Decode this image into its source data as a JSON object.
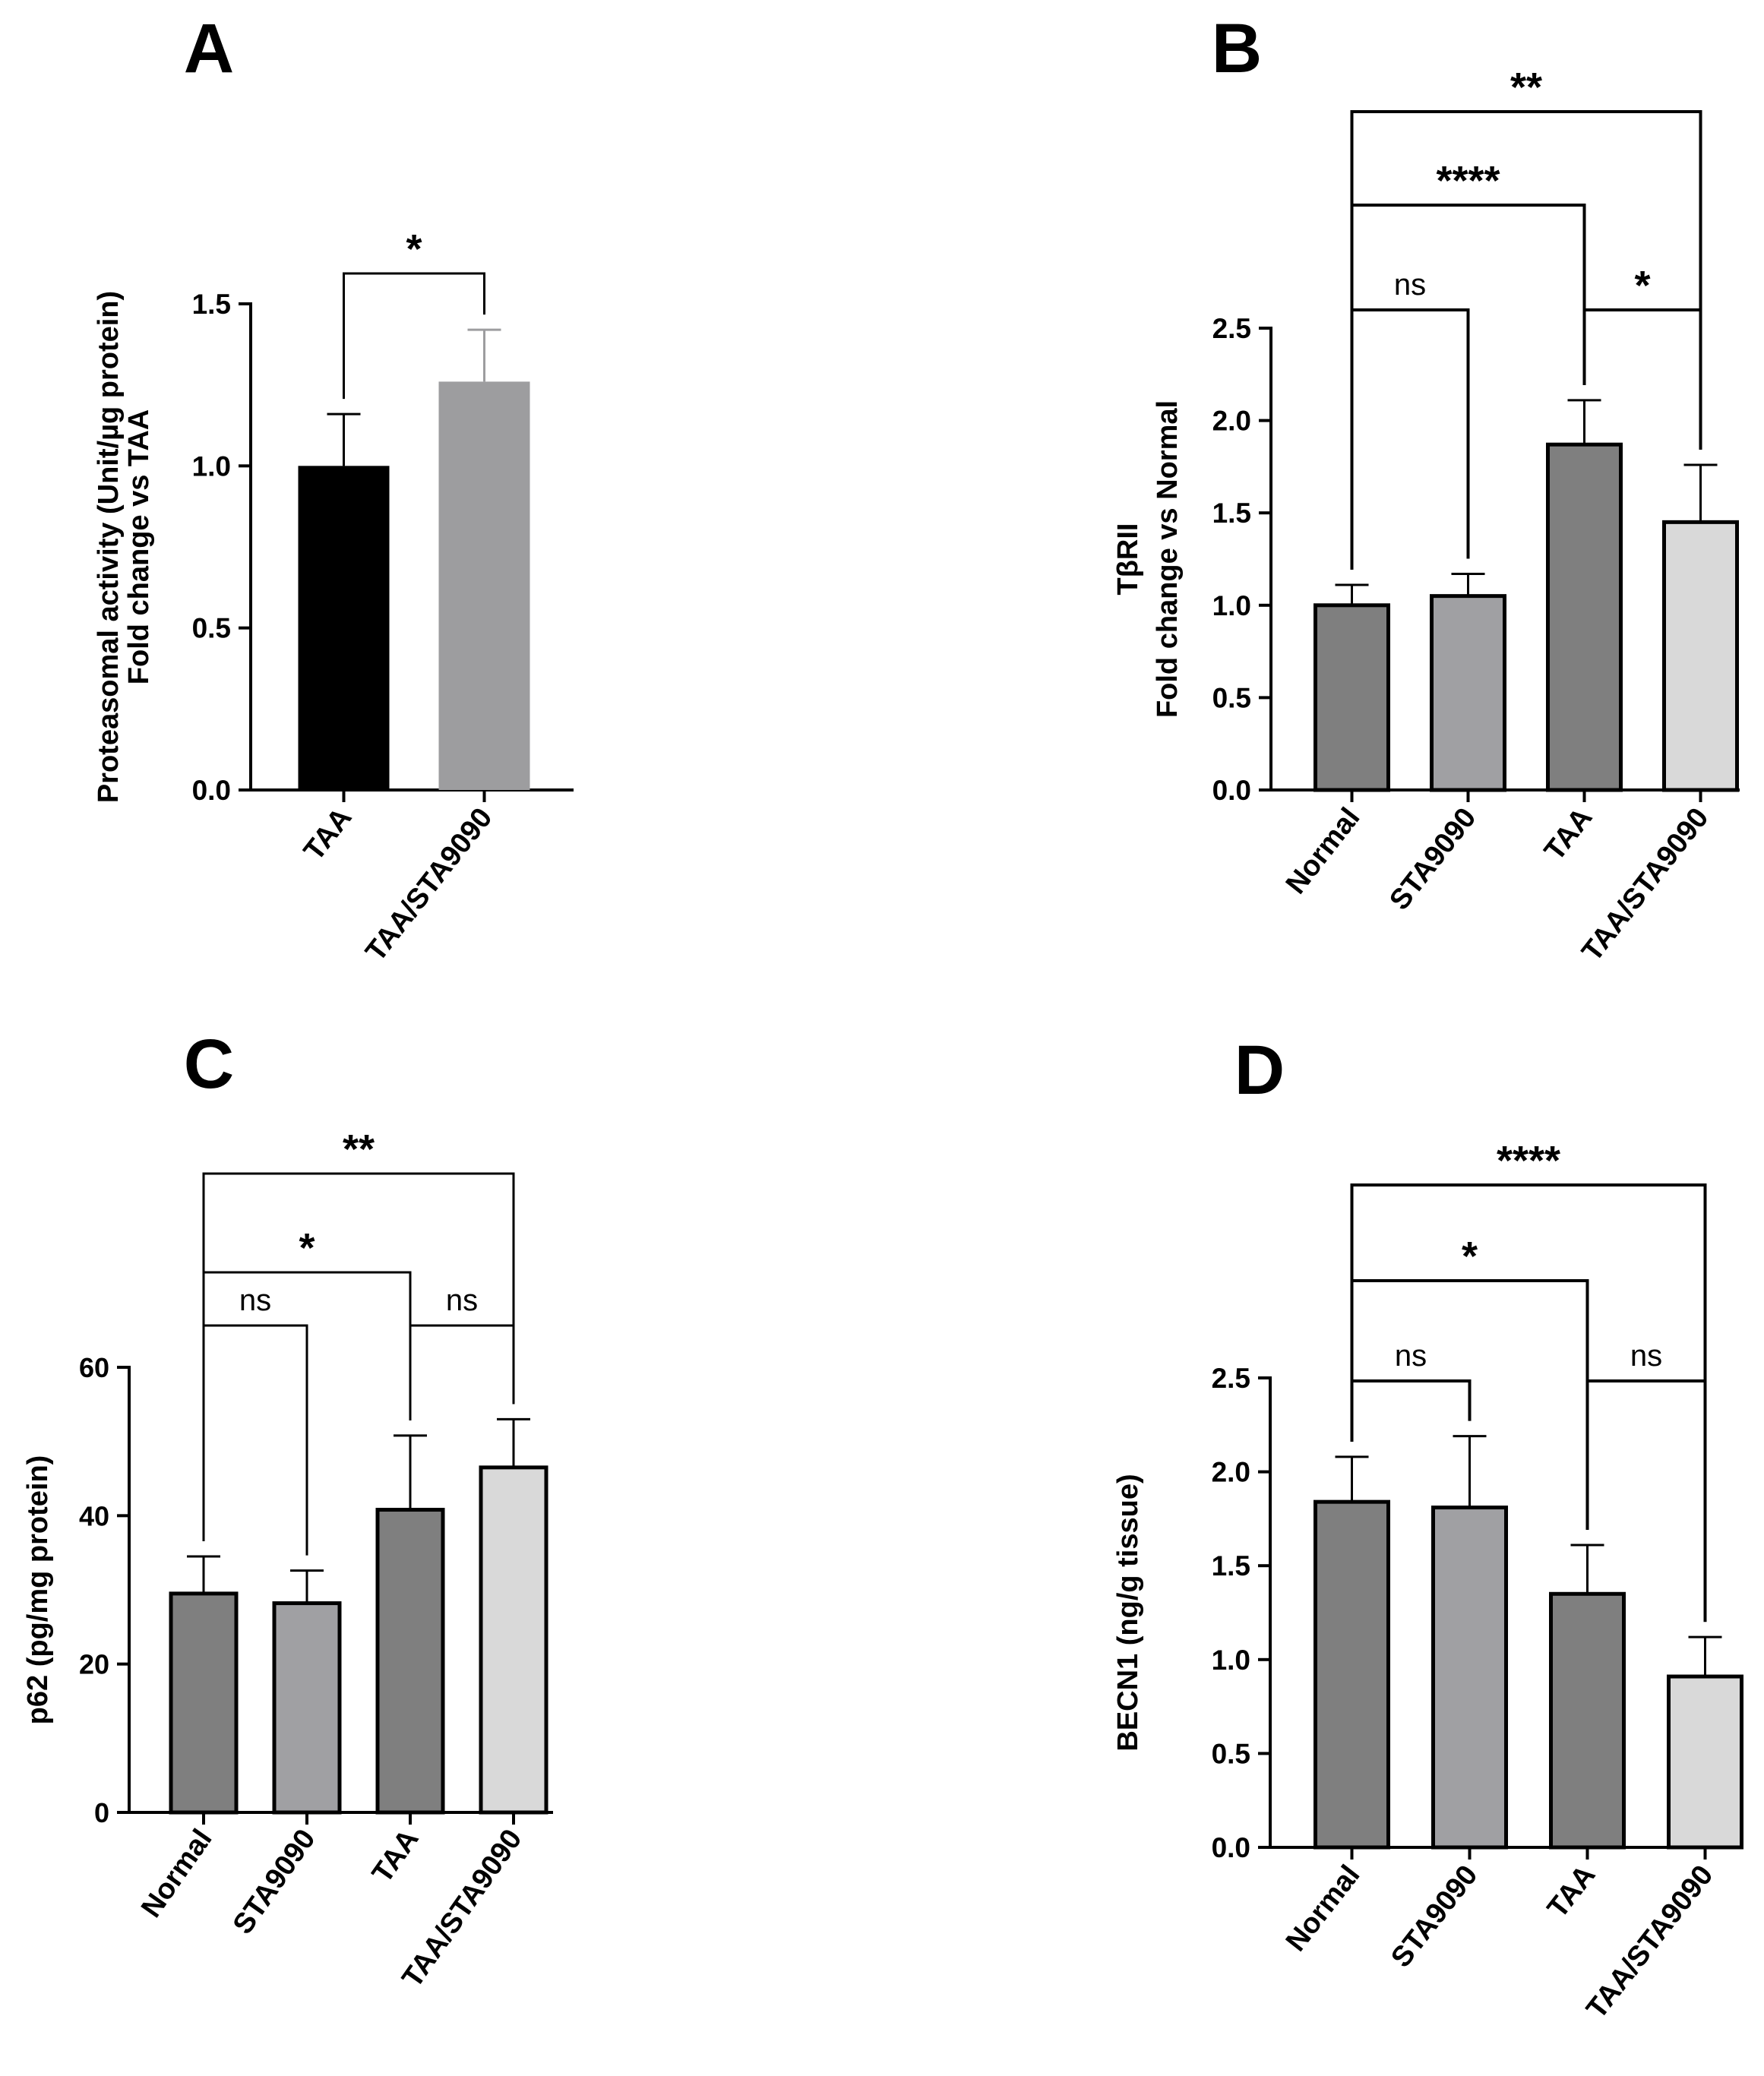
{
  "chart_data": [
    {
      "panel": "A",
      "type": "bar",
      "categories": [
        "TAA",
        "TAA/STA9090"
      ],
      "values": [
        1.0,
        1.26
      ],
      "errors": [
        0.16,
        0.16
      ],
      "colors": [
        "#000000",
        "#9d9d9f"
      ],
      "ylim": [
        0,
        1.5
      ],
      "yticks": [
        "0.0",
        "0.5",
        "1.0",
        "1.5"
      ],
      "ylabel": [
        "Proteasomal activity (Unit/µg protein)",
        "Fold change vs TAA"
      ],
      "xlabel": "",
      "title": "",
      "comparisons": [
        {
          "from": 0,
          "to": 1,
          "label": "*",
          "level": 1
        }
      ]
    },
    {
      "panel": "B",
      "type": "bar",
      "categories": [
        "Normal",
        "STA9090",
        "TAA",
        "TAA/STA9090"
      ],
      "values": [
        1.0,
        1.05,
        1.87,
        1.45
      ],
      "errors": [
        0.11,
        0.12,
        0.24,
        0.31
      ],
      "colors": [
        "#7f7f7f",
        "#a0a0a3",
        "#7f7f7f",
        "#d9d9d9"
      ],
      "ylim": [
        0,
        2.5
      ],
      "yticks": [
        "0.0",
        "0.5",
        "1.0",
        "1.5",
        "2.0",
        "2.5"
      ],
      "ylabel": [
        "TβRII",
        "Fold change vs Normal"
      ],
      "xlabel": "",
      "title": "",
      "comparisons": [
        {
          "from": 0,
          "to": 1,
          "label": "ns",
          "level": 1
        },
        {
          "from": 2,
          "to": 3,
          "label": "*",
          "level": 1
        },
        {
          "from": 0,
          "to": 2,
          "label": "****",
          "level": 2
        },
        {
          "from": 0,
          "to": 3,
          "label": "**",
          "level": 3
        }
      ]
    },
    {
      "panel": "C",
      "type": "bar",
      "categories": [
        "Normal",
        "STA9090",
        "TAA",
        "TAA/STA9090"
      ],
      "values": [
        29.5,
        28.2,
        40.8,
        46.5
      ],
      "errors": [
        5.0,
        4.4,
        10.0,
        6.5
      ],
      "colors": [
        "#7f7f7f",
        "#a0a0a3",
        "#7f7f7f",
        "#d9d9d9"
      ],
      "ylim": [
        0,
        60
      ],
      "yticks": [
        "0",
        "20",
        "40",
        "60"
      ],
      "ylabel": [
        "p62 (pg/mg protein)"
      ],
      "xlabel": "",
      "title": "",
      "comparisons": [
        {
          "from": 0,
          "to": 1,
          "label": "ns",
          "level": 1
        },
        {
          "from": 2,
          "to": 3,
          "label": "ns",
          "level": 1
        },
        {
          "from": 0,
          "to": 2,
          "label": "*",
          "level": 2
        },
        {
          "from": 0,
          "to": 3,
          "label": "**",
          "level": 3
        }
      ]
    },
    {
      "panel": "D",
      "type": "bar",
      "categories": [
        "Normal",
        "STA9090",
        "TAA",
        "TAA/STA9090"
      ],
      "values": [
        1.84,
        1.81,
        1.35,
        0.91
      ],
      "errors": [
        0.24,
        0.38,
        0.26,
        0.21
      ],
      "colors": [
        "#7f7f7f",
        "#a0a0a3",
        "#7f7f7f",
        "#d9d9d9"
      ],
      "ylim": [
        0,
        2.5
      ],
      "yticks": [
        "0.0",
        "0.5",
        "1.0",
        "1.5",
        "2.0",
        "2.5"
      ],
      "ylabel": [
        "BECN1 (ng/g tissue)"
      ],
      "xlabel": "",
      "title": "",
      "comparisons": [
        {
          "from": 0,
          "to": 1,
          "label": "ns",
          "level": 1
        },
        {
          "from": 2,
          "to": 3,
          "label": "ns",
          "level": 1
        },
        {
          "from": 0,
          "to": 2,
          "label": "*",
          "level": 2
        },
        {
          "from": 0,
          "to": 3,
          "label": "****",
          "level": 3
        }
      ]
    }
  ]
}
